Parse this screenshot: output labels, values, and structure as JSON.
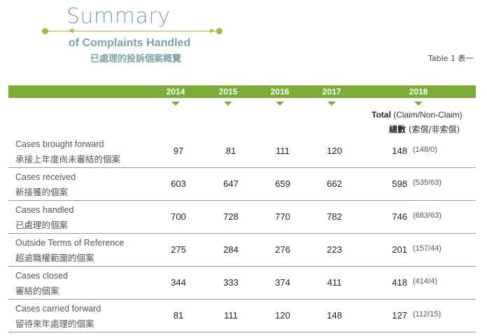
{
  "header": {
    "title_main": "Summary",
    "title_sub": "of Complaints Handled",
    "title_cn": "已處理的投訴個案概覽",
    "table_label": "Table 1  表一"
  },
  "columns": {
    "years": [
      "2014",
      "2015",
      "2016",
      "2017",
      "2018"
    ],
    "total_en_bold": "Total",
    "total_en_rest": " (Claim/Non-Claim)",
    "total_cn_bold": "總數",
    "total_cn_rest": " (索償/非索償)"
  },
  "rows": [
    {
      "label_en": "Cases brought forward",
      "label_cn": "承接上年度尚未審結的個案",
      "values": [
        "97",
        "81",
        "111",
        "120"
      ],
      "total": "148",
      "split": "(148/0)"
    },
    {
      "label_en": "Cases received",
      "label_cn": "新接獲的個案",
      "values": [
        "603",
        "647",
        "659",
        "662"
      ],
      "total": "598",
      "split": "(535/63)"
    },
    {
      "label_en": "Cases handled",
      "label_cn": "已處理的個案",
      "values": [
        "700",
        "728",
        "770",
        "782"
      ],
      "total": "746",
      "split": "(683/63)"
    },
    {
      "label_en": "Outside Terms of Reference",
      "label_cn": "超逾職權範圍的個案",
      "values": [
        "275",
        "284",
        "276",
        "223"
      ],
      "total": "201",
      "split": "(157/44)"
    },
    {
      "label_en": "Cases closed",
      "label_cn": "審結的個案",
      "values": [
        "344",
        "333",
        "374",
        "411"
      ],
      "total": "418",
      "split": "(414/4)"
    },
    {
      "label_en": "Cases carried forward",
      "label_cn": "留待來年處理的個案",
      "values": [
        "81",
        "111",
        "120",
        "148"
      ],
      "total": "127",
      "split": "(112/15)"
    }
  ],
  "colors": {
    "accent_green": "#7dab38",
    "title_teal": "#7aa4a8"
  }
}
